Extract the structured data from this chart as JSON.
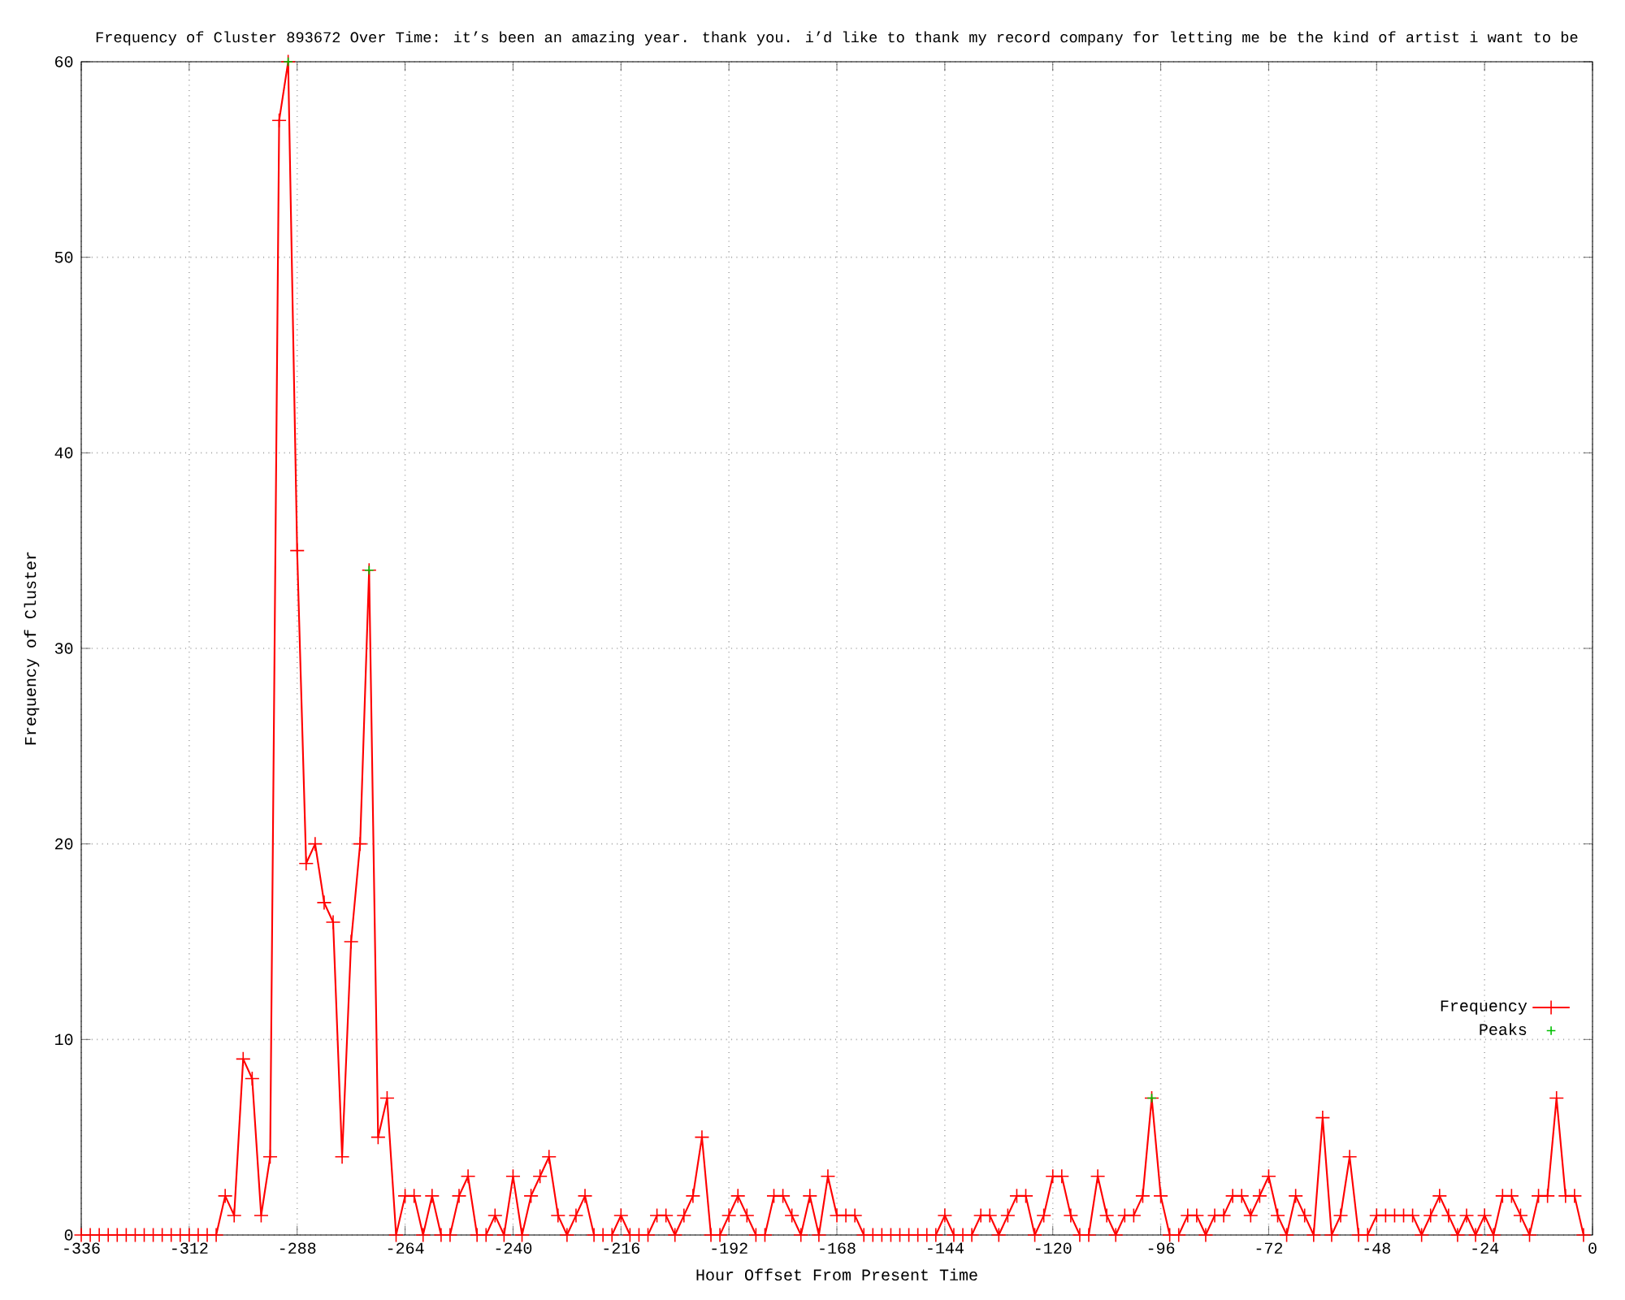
{
  "chart_data": {
    "type": "line",
    "title": "Frequency of Cluster 893672 Over Time: it’s been an amazing year. thank you. i’d like to thank my record company for letting me be the kind of artist i want to be",
    "xlabel": "Hour Offset From Present Time",
    "ylabel": "Frequency of Cluster",
    "xlim": [
      -336,
      0
    ],
    "ylim": [
      0,
      60
    ],
    "xticks": [
      -336,
      -312,
      -288,
      -264,
      -240,
      -216,
      -192,
      -168,
      -144,
      -120,
      -96,
      -72,
      -48,
      -24,
      0
    ],
    "yticks": [
      0,
      10,
      20,
      30,
      40,
      50,
      60
    ],
    "grid": true,
    "legend": "bottom right",
    "series": [
      {
        "name": "Frequency",
        "color": "#ff0000",
        "marker": "cross",
        "x": [
          -336,
          -334,
          -332,
          -330,
          -328,
          -326,
          -324,
          -322,
          -320,
          -318,
          -316,
          -314,
          -312,
          -310,
          -308,
          -306,
          -304,
          -302,
          -300,
          -298,
          -296,
          -294,
          -292,
          -290,
          -288,
          -286,
          -284,
          -282,
          -280,
          -278,
          -276,
          -274,
          -272,
          -270,
          -268,
          -266,
          -264,
          -262,
          -260,
          -258,
          -256,
          -254,
          -252,
          -250,
          -248,
          -246,
          -244,
          -242,
          -240,
          -238,
          -236,
          -234,
          -232,
          -230,
          -228,
          -226,
          -224,
          -222,
          -220,
          -218,
          -216,
          -214,
          -212,
          -210,
          -208,
          -206,
          -204,
          -202,
          -200,
          -198,
          -196,
          -194,
          -192,
          -190,
          -188,
          -186,
          -184,
          -182,
          -180,
          -178,
          -176,
          -174,
          -172,
          -170,
          -168,
          -166,
          -164,
          -162,
          -160,
          -158,
          -156,
          -154,
          -152,
          -150,
          -148,
          -146,
          -144,
          -142,
          -140,
          -138,
          -136,
          -134,
          -132,
          -130,
          -128,
          -126,
          -124,
          -122,
          -120,
          -118,
          -116,
          -114,
          -112,
          -110,
          -108,
          -106,
          -104,
          -102,
          -100,
          -98,
          -96,
          -94,
          -92,
          -90,
          -88,
          -86,
          -84,
          -82,
          -80,
          -78,
          -76,
          -74,
          -72,
          -70,
          -68,
          -66,
          -64,
          -62,
          -60,
          -58,
          -56,
          -54,
          -52,
          -50,
          -48,
          -46,
          -44,
          -42,
          -40,
          -38,
          -36,
          -34,
          -32,
          -30,
          -28,
          -26,
          -24,
          -22,
          -20,
          -18,
          -16,
          -14,
          -12,
          -10,
          -8,
          -6,
          -4,
          -2
        ],
        "values": [
          0,
          0,
          0,
          0,
          0,
          0,
          0,
          0,
          0,
          0,
          0,
          0,
          0,
          0,
          0,
          0,
          2,
          1,
          9,
          8,
          1,
          4,
          57,
          60,
          35,
          19,
          20,
          17,
          16,
          4,
          15,
          20,
          34,
          5,
          7,
          0,
          2,
          2,
          0,
          2,
          0,
          0,
          2,
          3,
          0,
          0,
          1,
          0,
          3,
          0,
          2,
          3,
          4,
          1,
          0,
          1,
          2,
          0,
          0,
          0,
          1,
          0,
          0,
          0,
          1,
          1,
          0,
          1,
          2,
          5,
          0,
          0,
          1,
          2,
          1,
          0,
          0,
          2,
          2,
          1,
          0,
          2,
          0,
          3,
          1,
          1,
          1,
          0,
          0,
          0,
          0,
          0,
          0,
          0,
          0,
          0,
          1,
          0,
          0,
          0,
          1,
          1,
          0,
          1,
          2,
          2,
          0,
          1,
          3,
          3,
          1,
          0,
          0,
          3,
          1,
          0,
          1,
          1,
          2,
          7,
          2,
          0,
          0,
          1,
          1,
          0,
          1,
          1,
          2,
          2,
          1,
          2,
          3,
          1,
          0,
          2,
          1,
          0,
          6,
          0,
          1,
          4,
          0,
          0,
          1,
          1,
          1,
          1,
          1,
          0,
          1,
          2,
          1,
          0,
          1,
          0,
          1,
          0,
          2,
          2,
          1,
          0,
          2,
          2,
          7,
          2,
          2,
          0
        ]
      },
      {
        "name": "Peaks",
        "type": "scatter",
        "color": "#00c000",
        "marker": "cross",
        "x": [
          -290,
          -272,
          -98
        ],
        "values": [
          60,
          34,
          7
        ]
      }
    ]
  }
}
